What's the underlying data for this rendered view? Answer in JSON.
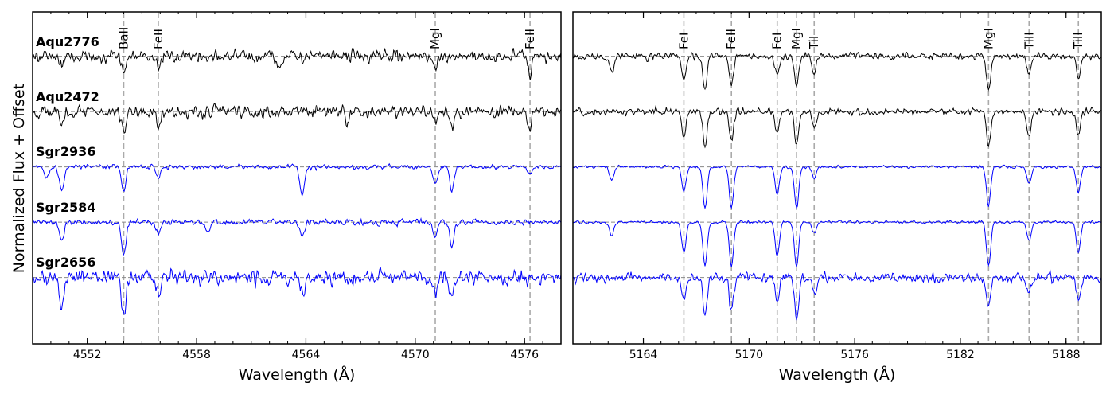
{
  "figure": {
    "ylabel": "Normalized Flux + Offset"
  },
  "chart_data": [
    {
      "type": "line",
      "panel": "left",
      "xlabel": "Wavelength (Å)",
      "xlim": [
        4549,
        4578
      ],
      "ylim": [
        -0.2,
        5.8
      ],
      "xticks": [
        4552,
        4558,
        4564,
        4570,
        4576
      ],
      "star_labels": [
        "Aqu2776",
        "Aqu2472",
        "Sgr2936",
        "Sgr2584",
        "Sgr2656"
      ],
      "lines": [
        {
          "label": "BaII",
          "x": 4554.0
        },
        {
          "label": "FeII",
          "x": 4555.9
        },
        {
          "label": "MgI",
          "x": 4571.1
        },
        {
          "label": "FeII",
          "x": 4576.3
        }
      ],
      "series": [
        {
          "name": "Aqu2776",
          "color": "#000000",
          "offset": 5.0,
          "noise": 0.11,
          "depths": {
            "4554.0": 0.3,
            "4555.9": 0.22,
            "4571.1": 0.18,
            "4576.3": 0.3,
            "4562.5": 0.2,
            "4550.6": 0.18
          }
        },
        {
          "name": "Aqu2472",
          "color": "#000000",
          "offset": 4.0,
          "noise": 0.11,
          "depths": {
            "4554.0": 0.35,
            "4555.9": 0.25,
            "4571.1": 0.2,
            "4576.3": 0.3,
            "4572.0": 0.3,
            "4550.6": 0.25,
            "4566.3": 0.2
          }
        },
        {
          "name": "Sgr2936",
          "color": "#0000ff",
          "offset": 3.0,
          "noise": 0.04,
          "depths": {
            "4554.0": 0.45,
            "4555.9": 0.18,
            "4571.1": 0.3,
            "4572.0": 0.4,
            "4563.8": 0.5,
            "4550.6": 0.45,
            "4549.8": 0.2,
            "4576.3": 0.12
          }
        },
        {
          "name": "Sgr2584",
          "color": "#0000ff",
          "offset": 2.0,
          "noise": 0.05,
          "depths": {
            "4554.0": 0.6,
            "4555.9": 0.22,
            "4571.1": 0.25,
            "4572.0": 0.4,
            "4550.6": 0.35,
            "4563.8": 0.25,
            "4558.6": 0.2
          }
        },
        {
          "name": "Sgr2656",
          "color": "#0000ff",
          "offset": 1.0,
          "noise": 0.13,
          "depths": {
            "4554.0": 0.7,
            "4555.9": 0.3,
            "4571.1": 0.3,
            "4572.0": 0.3,
            "4550.6": 0.55,
            "4563.8": 0.3
          }
        }
      ]
    },
    {
      "type": "line",
      "panel": "right",
      "xlabel": "Wavelength (Å)",
      "xlim": [
        5160,
        5190
      ],
      "ylim": [
        -0.2,
        5.8
      ],
      "xticks": [
        5164,
        5170,
        5176,
        5182,
        5188
      ],
      "lines": [
        {
          "label": "FeI",
          "x": 5166.3
        },
        {
          "label": "FeII",
          "x": 5169.0
        },
        {
          "label": "FeI",
          "x": 5171.6
        },
        {
          "label": "MgI",
          "x": 5172.7
        },
        {
          "label": "TiI",
          "x": 5173.7
        },
        {
          "label": "MgI",
          "x": 5183.6
        },
        {
          "label": "TiII",
          "x": 5185.9
        },
        {
          "label": "TiII",
          "x": 5188.7
        }
      ],
      "series": [
        {
          "name": "Aqu2776",
          "color": "#000000",
          "offset": 5.0,
          "noise": 0.06,
          "depths": {
            "5166.3": 0.45,
            "5167.5": 0.6,
            "5169.0": 0.5,
            "5171.6": 0.35,
            "5172.7": 0.55,
            "5173.7": 0.3,
            "5183.6": 0.6,
            "5185.9": 0.3,
            "5188.7": 0.4,
            "5162.2": 0.3
          }
        },
        {
          "name": "Aqu2472",
          "color": "#000000",
          "offset": 4.0,
          "noise": 0.06,
          "depths": {
            "5166.3": 0.45,
            "5167.5": 0.65,
            "5169.0": 0.55,
            "5171.6": 0.4,
            "5172.7": 0.6,
            "5173.7": 0.3,
            "5183.6": 0.6,
            "5185.9": 0.45,
            "5188.7": 0.4
          }
        },
        {
          "name": "Sgr2936",
          "color": "#0000ff",
          "offset": 3.0,
          "noise": 0.025,
          "depths": {
            "5166.3": 0.45,
            "5167.5": 0.75,
            "5169.0": 0.75,
            "5171.6": 0.5,
            "5172.7": 0.75,
            "5173.7": 0.2,
            "5183.6": 0.7,
            "5185.9": 0.3,
            "5188.7": 0.45,
            "5162.2": 0.25
          }
        },
        {
          "name": "Sgr2584",
          "color": "#0000ff",
          "offset": 2.0,
          "noise": 0.025,
          "depths": {
            "5166.3": 0.55,
            "5167.5": 0.8,
            "5169.0": 0.8,
            "5171.6": 0.6,
            "5172.7": 0.8,
            "5173.7": 0.2,
            "5183.6": 0.8,
            "5185.9": 0.35,
            "5188.7": 0.55,
            "5162.2": 0.25
          }
        },
        {
          "name": "Sgr2656",
          "color": "#0000ff",
          "offset": 1.0,
          "noise": 0.08,
          "depths": {
            "5166.3": 0.4,
            "5167.5": 0.65,
            "5169.0": 0.6,
            "5171.6": 0.45,
            "5172.7": 0.7,
            "5173.7": 0.3,
            "5183.6": 0.5,
            "5185.9": 0.3,
            "5188.7": 0.4
          }
        }
      ]
    }
  ]
}
